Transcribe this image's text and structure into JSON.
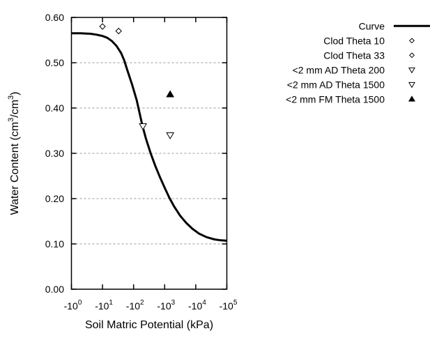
{
  "figure": {
    "background": "#ffffff",
    "foreground": "#000000",
    "grid_color": "#999999"
  },
  "axes": {
    "x": {
      "title": "Soil Matric Potential (kPa)",
      "scale": "negative log10 magnitude",
      "ticks": [
        {
          "base": "-10",
          "exp": "0",
          "decade": 0
        },
        {
          "base": "-10",
          "exp": "1",
          "decade": 1
        },
        {
          "base": "-10",
          "exp": "2",
          "decade": 2
        },
        {
          "base": "-10",
          "exp": "3",
          "decade": 3
        },
        {
          "base": "-10",
          "exp": "4",
          "decade": 4
        },
        {
          "base": "-10",
          "exp": "5",
          "decade": 5
        }
      ]
    },
    "y": {
      "title_plain": "Water Content (cm3/cm3)",
      "title_parts": [
        {
          "t": "Water Content (cm"
        },
        {
          "t": "3",
          "sup": true
        },
        {
          "t": "/cm"
        },
        {
          "t": "3",
          "sup": true
        },
        {
          "t": ")"
        }
      ],
      "ticks": [
        "0.00",
        "0.10",
        "0.20",
        "0.30",
        "0.40",
        "0.50",
        "0.60"
      ],
      "tick_values": [
        0,
        0.1,
        0.2,
        0.3,
        0.4,
        0.5,
        0.6
      ],
      "grid_values": [
        0.1,
        0.2,
        0.3,
        0.4,
        0.5
      ]
    }
  },
  "legend": {
    "entries": [
      {
        "label": "Curve",
        "marker": "line"
      },
      {
        "label": "Clod Theta 10",
        "marker": "diamond-open"
      },
      {
        "label": "Clod Theta 33",
        "marker": "diamond-open"
      },
      {
        "label": "<2 mm AD Theta 200",
        "marker": "triangle-down-open"
      },
      {
        "label": "<2 mm AD Theta 1500",
        "marker": "triangle-down-open"
      },
      {
        "label": "<2 mm FM Theta 1500",
        "marker": "triangle-up-filled"
      }
    ]
  },
  "chart_data": {
    "type": "line",
    "title": "",
    "xlabel": "Soil Matric Potential (kPa)",
    "ylabel": "Water Content (cm3/cm3)",
    "xlim_decades": [
      0,
      5
    ],
    "x_tick_labels": [
      "-10^0",
      "-10^1",
      "-10^2",
      "-10^3",
      "-10^4",
      "-10^5"
    ],
    "ylim": [
      0,
      0.6
    ],
    "grid": "horizontal dotted lines at 0.10 through 0.50",
    "legend_position": "outside top-right",
    "series": [
      {
        "name": "Curve",
        "kind": "line",
        "points_decade_theta": [
          [
            0.0,
            0.565
          ],
          [
            0.3,
            0.565
          ],
          [
            0.6,
            0.564
          ],
          [
            0.8,
            0.562
          ],
          [
            1.0,
            0.559
          ],
          [
            1.15,
            0.555
          ],
          [
            1.3,
            0.548
          ],
          [
            1.45,
            0.537
          ],
          [
            1.6,
            0.521
          ],
          [
            1.7,
            0.505
          ],
          [
            1.8,
            0.483
          ],
          [
            1.95,
            0.452
          ],
          [
            2.1,
            0.417
          ],
          [
            2.28,
            0.362
          ],
          [
            2.4,
            0.332
          ],
          [
            2.55,
            0.3
          ],
          [
            2.7,
            0.272
          ],
          [
            2.85,
            0.247
          ],
          [
            3.0,
            0.224
          ],
          [
            3.15,
            0.202
          ],
          [
            3.3,
            0.183
          ],
          [
            3.5,
            0.162
          ],
          [
            3.7,
            0.146
          ],
          [
            3.9,
            0.133
          ],
          [
            4.1,
            0.123
          ],
          [
            4.35,
            0.115
          ],
          [
            4.6,
            0.11
          ],
          [
            4.8,
            0.108
          ],
          [
            5.0,
            0.107
          ]
        ]
      },
      {
        "name": "Clod Theta 10",
        "kind": "scatter",
        "marker": "diamond-open",
        "points": [
          {
            "matric_potential_kPa": -10,
            "water_content": 0.58
          }
        ]
      },
      {
        "name": "Clod Theta 33",
        "kind": "scatter",
        "marker": "diamond-open",
        "points": [
          {
            "matric_potential_kPa": -33,
            "water_content": 0.57
          }
        ]
      },
      {
        "name": "<2 mm AD Theta 200",
        "kind": "scatter",
        "marker": "triangle-down-open",
        "points": [
          {
            "matric_potential_kPa": -200,
            "water_content": 0.36
          }
        ]
      },
      {
        "name": "<2 mm AD Theta 1500",
        "kind": "scatter",
        "marker": "triangle-down-open",
        "points": [
          {
            "matric_potential_kPa": -1500,
            "water_content": 0.34
          }
        ]
      },
      {
        "name": "<2 mm FM Theta 1500",
        "kind": "scatter",
        "marker": "triangle-up-filled",
        "points": [
          {
            "matric_potential_kPa": -1500,
            "water_content": 0.43
          }
        ]
      }
    ]
  }
}
